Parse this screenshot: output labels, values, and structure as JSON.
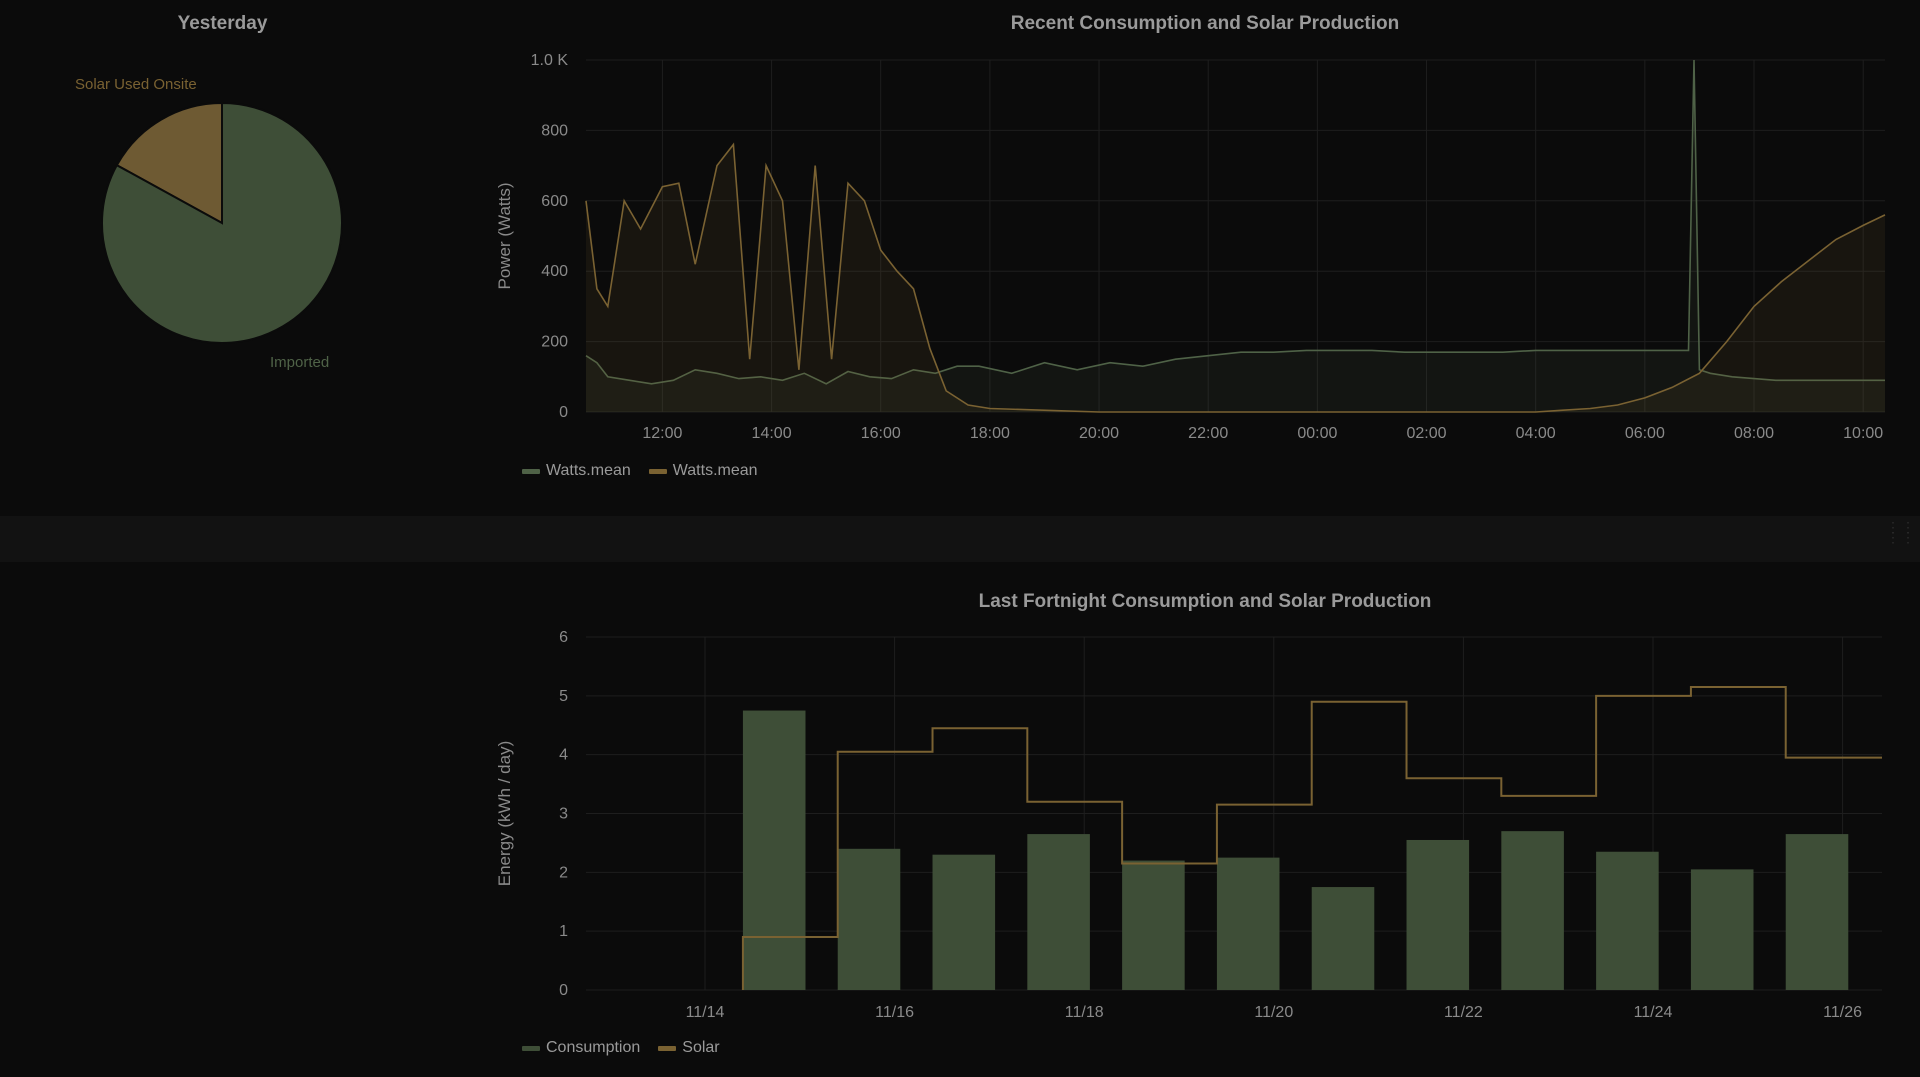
{
  "colors": {
    "consumption": "#3e4e37",
    "consumption_line": "#4f6247",
    "solar": "#6e5a33",
    "solar_line": "#7a6232",
    "grid": "#1e1e1e",
    "axis_text": "#8a8a8a"
  },
  "pie_panel": {
    "title": "Yesterday",
    "slices": [
      {
        "label": "Solar Used Onsite",
        "fraction": 0.17
      },
      {
        "label": "Imported",
        "fraction": 0.83
      }
    ]
  },
  "power_panel": {
    "title": "Recent Consumption and Solar Production",
    "legend": [
      "Watts.mean",
      "Watts.mean"
    ]
  },
  "energy_panel": {
    "title": "Last Fortnight Consumption and Solar Production",
    "legend": [
      "Consumption",
      "Solar"
    ]
  },
  "chart_data": [
    {
      "type": "pie",
      "title": "Yesterday",
      "labels": [
        "Solar Used Onsite",
        "Imported"
      ],
      "values": [
        0.17,
        0.83
      ]
    },
    {
      "type": "line",
      "title": "Recent Consumption and Solar Production",
      "ylabel": "Power (Watts)",
      "ylim": [
        0,
        1000
      ],
      "yticks": [
        "0",
        "200",
        "400",
        "600",
        "800",
        "1.0 K"
      ],
      "xticks": [
        "12:00",
        "14:00",
        "16:00",
        "18:00",
        "20:00",
        "22:00",
        "00:00",
        "02:00",
        "04:00",
        "06:00",
        "08:00",
        "10:00"
      ],
      "grid": true,
      "legend": "bottom-left",
      "series": [
        {
          "name": "Watts.mean",
          "color": "#4f6247",
          "x": [
            10.6,
            10.8,
            11.0,
            11.4,
            11.8,
            12.2,
            12.6,
            13.0,
            13.4,
            13.8,
            14.2,
            14.6,
            15.0,
            15.4,
            15.8,
            16.2,
            16.6,
            17.0,
            17.4,
            17.8,
            18.4,
            19.0,
            19.6,
            20.2,
            20.8,
            21.4,
            22.0,
            22.6,
            23.2,
            23.8,
            24.4,
            25.0,
            25.6,
            26.2,
            26.8,
            27.4,
            28.0,
            28.6,
            29.2,
            29.8,
            30.4,
            30.8,
            30.9,
            31.0,
            31.2,
            31.6,
            32.0,
            32.4,
            32.8,
            33.2,
            33.6,
            34.0,
            34.4
          ],
          "y": [
            160,
            140,
            100,
            90,
            80,
            90,
            120,
            110,
            95,
            100,
            90,
            110,
            80,
            115,
            100,
            95,
            120,
            110,
            130,
            130,
            110,
            140,
            120,
            140,
            130,
            150,
            160,
            170,
            170,
            175,
            175,
            175,
            170,
            170,
            170,
            170,
            175,
            175,
            175,
            175,
            175,
            175,
            1000,
            120,
            110,
            100,
            95,
            90,
            90,
            90,
            90,
            90,
            90
          ]
        },
        {
          "name": "Watts.mean",
          "color": "#7a6232",
          "x": [
            10.6,
            10.8,
            11.0,
            11.3,
            11.6,
            12.0,
            12.3,
            12.6,
            13.0,
            13.3,
            13.6,
            13.9,
            14.2,
            14.5,
            14.8,
            15.1,
            15.4,
            15.7,
            16.0,
            16.3,
            16.6,
            16.9,
            17.2,
            17.6,
            18.0,
            20.0,
            24.0,
            28.0,
            28.5,
            29.0,
            29.5,
            30.0,
            30.5,
            31.0,
            31.5,
            32.0,
            32.5,
            33.0,
            33.5,
            34.0,
            34.4
          ],
          "y": [
            600,
            350,
            300,
            600,
            520,
            640,
            650,
            420,
            700,
            760,
            150,
            700,
            600,
            120,
            700,
            150,
            650,
            600,
            460,
            400,
            350,
            180,
            60,
            20,
            10,
            0,
            0,
            0,
            5,
            10,
            20,
            40,
            70,
            110,
            200,
            300,
            370,
            430,
            490,
            530,
            560
          ]
        }
      ]
    },
    {
      "type": "bar",
      "title": "Last Fortnight Consumption and Solar Production",
      "ylabel": "Energy (kWh / day)",
      "ylim": [
        0,
        6
      ],
      "yticks": [
        "0",
        "1",
        "2",
        "3",
        "4",
        "5",
        "6"
      ],
      "xticks": [
        "11/14",
        "11/16",
        "11/18",
        "11/20",
        "11/22",
        "11/24",
        "11/26"
      ],
      "grid": true,
      "legend": "bottom-left",
      "categories": [
        "11/14",
        "11/15",
        "11/16",
        "11/17",
        "11/18",
        "11/19",
        "11/20",
        "11/21",
        "11/22",
        "11/23",
        "11/24",
        "11/25",
        "11/26"
      ],
      "series": [
        {
          "name": "Consumption",
          "type": "bar",
          "color": "#3e4e37",
          "values": [
            4.75,
            2.4,
            2.3,
            2.65,
            2.2,
            2.25,
            1.75,
            2.55,
            2.7,
            2.35,
            2.05,
            2.65,
            null
          ]
        },
        {
          "name": "Solar",
          "type": "step",
          "color": "#7a6232",
          "values": [
            0.9,
            4.05,
            4.45,
            3.2,
            2.15,
            3.15,
            4.9,
            3.6,
            3.3,
            5.0,
            5.15,
            3.95,
            3.95
          ]
        }
      ]
    }
  ]
}
